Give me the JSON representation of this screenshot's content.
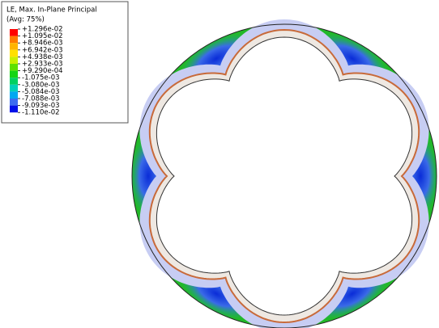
{
  "legend": {
    "title": [
      "LE, Max. In-Plane Principal",
      "(Avg: 75%)"
    ],
    "labels": [
      "+1.296e-02",
      "+1.095e-02",
      "+8.946e-03",
      "+6.942e-03",
      "+4.938e-03",
      "+2.933e-03",
      "+9.290e-04",
      "-1.075e-03",
      "-3.080e-03",
      "-5.084e-03",
      "-7.088e-03",
      "-9.093e-03",
      "-1.110e-02"
    ]
  }
}
